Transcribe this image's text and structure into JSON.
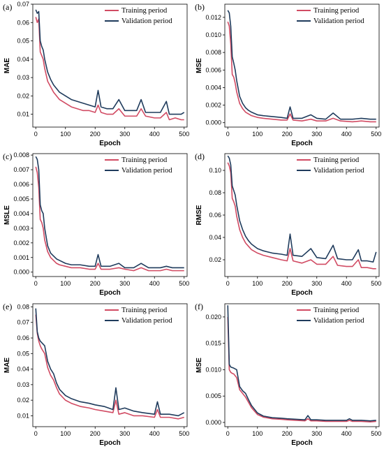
{
  "figure": {
    "series_colors": {
      "training": "#d14b63",
      "validation": "#1f3b5c"
    }
  },
  "chart_data": [
    {
      "type": "line",
      "panel_label": "(a)",
      "xlabel": "Epoch",
      "ylabel": "MAE",
      "xlim": [
        -10,
        510
      ],
      "ylim": [
        0.003,
        0.07
      ],
      "xticks": [
        0,
        100,
        200,
        300,
        400,
        500
      ],
      "yticks": [
        0.01,
        0.02,
        0.03,
        0.04,
        0.05,
        0.06,
        0.07
      ],
      "legend_position": "top-right",
      "grid": false,
      "series": [
        {
          "name": "Training period",
          "color": "#d14b63",
          "x": [
            0,
            5,
            10,
            15,
            20,
            25,
            30,
            40,
            50,
            60,
            70,
            80,
            90,
            100,
            120,
            140,
            160,
            180,
            200,
            210,
            220,
            240,
            260,
            280,
            300,
            320,
            340,
            355,
            370,
            400,
            420,
            440,
            450,
            470,
            490,
            500
          ],
          "y": [
            0.063,
            0.06,
            0.062,
            0.044,
            0.042,
            0.04,
            0.035,
            0.028,
            0.025,
            0.022,
            0.02,
            0.018,
            0.017,
            0.016,
            0.014,
            0.013,
            0.012,
            0.012,
            0.011,
            0.015,
            0.011,
            0.01,
            0.01,
            0.013,
            0.009,
            0.009,
            0.009,
            0.013,
            0.009,
            0.008,
            0.008,
            0.011,
            0.007,
            0.008,
            0.007,
            0.007
          ]
        },
        {
          "name": "Validation period",
          "color": "#1f3b5c",
          "x": [
            0,
            5,
            10,
            15,
            20,
            25,
            30,
            40,
            50,
            60,
            70,
            80,
            90,
            100,
            120,
            140,
            160,
            180,
            200,
            210,
            220,
            240,
            260,
            280,
            300,
            320,
            340,
            355,
            370,
            400,
            420,
            440,
            450,
            470,
            490,
            500
          ],
          "y": [
            0.067,
            0.065,
            0.066,
            0.05,
            0.047,
            0.045,
            0.04,
            0.033,
            0.029,
            0.026,
            0.024,
            0.022,
            0.021,
            0.02,
            0.018,
            0.017,
            0.016,
            0.015,
            0.014,
            0.023,
            0.014,
            0.013,
            0.013,
            0.018,
            0.012,
            0.012,
            0.012,
            0.018,
            0.011,
            0.011,
            0.011,
            0.017,
            0.01,
            0.01,
            0.01,
            0.011
          ]
        }
      ]
    },
    {
      "type": "line",
      "panel_label": "(b)",
      "xlabel": "Epoch",
      "ylabel": "MSE",
      "xlim": [
        -10,
        510
      ],
      "ylim": [
        -0.0005,
        0.0135
      ],
      "xticks": [
        0,
        100,
        200,
        300,
        400,
        500
      ],
      "yticks": [
        0.0,
        0.002,
        0.004,
        0.006,
        0.008,
        0.01,
        0.012
      ],
      "legend_position": "top-right",
      "grid": false,
      "series": [
        {
          "name": "Training period",
          "color": "#d14b63",
          "x": [
            0,
            5,
            10,
            15,
            20,
            25,
            30,
            40,
            50,
            60,
            70,
            80,
            100,
            120,
            150,
            180,
            200,
            210,
            220,
            250,
            280,
            300,
            330,
            355,
            380,
            420,
            450,
            480,
            500
          ],
          "y": [
            0.0115,
            0.011,
            0.009,
            0.0055,
            0.0052,
            0.0045,
            0.0035,
            0.0022,
            0.0016,
            0.0012,
            0.001,
            0.0008,
            0.0006,
            0.0005,
            0.0004,
            0.0003,
            0.0003,
            0.001,
            0.0003,
            0.0002,
            0.0004,
            0.0002,
            0.0002,
            0.0005,
            0.0002,
            0.0001,
            0.0002,
            0.0001,
            0.0001
          ]
        },
        {
          "name": "Validation period",
          "color": "#1f3b5c",
          "x": [
            0,
            5,
            10,
            15,
            20,
            25,
            30,
            40,
            50,
            60,
            70,
            80,
            100,
            120,
            150,
            180,
            200,
            210,
            220,
            250,
            280,
            300,
            330,
            355,
            380,
            420,
            450,
            480,
            500
          ],
          "y": [
            0.0128,
            0.0125,
            0.011,
            0.0075,
            0.0068,
            0.006,
            0.0048,
            0.003,
            0.0022,
            0.0017,
            0.0014,
            0.0012,
            0.0009,
            0.0008,
            0.0007,
            0.0006,
            0.0005,
            0.0018,
            0.0005,
            0.0005,
            0.0009,
            0.0005,
            0.0004,
            0.0011,
            0.0004,
            0.0004,
            0.0005,
            0.0004,
            0.0004
          ]
        }
      ]
    },
    {
      "type": "line",
      "panel_label": "(c)",
      "xlabel": "Epoch",
      "ylabel": "MSLE",
      "xlim": [
        -10,
        510
      ],
      "ylim": [
        -0.0003,
        0.0081
      ],
      "xticks": [
        0,
        100,
        200,
        300,
        400,
        500
      ],
      "yticks": [
        0.0,
        0.001,
        0.002,
        0.003,
        0.004,
        0.005,
        0.006,
        0.007,
        0.008
      ],
      "legend_position": "top-right",
      "grid": false,
      "series": [
        {
          "name": "Training period",
          "color": "#d14b63",
          "x": [
            0,
            5,
            10,
            15,
            20,
            25,
            30,
            40,
            50,
            60,
            70,
            80,
            100,
            120,
            150,
            180,
            200,
            210,
            220,
            250,
            280,
            300,
            330,
            355,
            380,
            420,
            440,
            460,
            500
          ],
          "y": [
            0.0072,
            0.0068,
            0.0058,
            0.0036,
            0.0034,
            0.003,
            0.0022,
            0.0014,
            0.001,
            0.0008,
            0.0006,
            0.0005,
            0.0004,
            0.0003,
            0.0003,
            0.0002,
            0.0002,
            0.0006,
            0.0002,
            0.0002,
            0.0003,
            0.0002,
            0.0001,
            0.0003,
            0.0001,
            0.0001,
            0.0002,
            0.0001,
            0.0001
          ]
        },
        {
          "name": "Validation period",
          "color": "#1f3b5c",
          "x": [
            0,
            5,
            10,
            15,
            20,
            25,
            30,
            40,
            50,
            60,
            70,
            80,
            100,
            120,
            150,
            180,
            200,
            210,
            220,
            250,
            280,
            300,
            330,
            355,
            380,
            420,
            440,
            460,
            500
          ],
          "y": [
            0.0079,
            0.0077,
            0.007,
            0.0046,
            0.0042,
            0.004,
            0.003,
            0.0018,
            0.0013,
            0.0011,
            0.0009,
            0.0008,
            0.0006,
            0.0005,
            0.0005,
            0.0004,
            0.0004,
            0.0012,
            0.0004,
            0.0004,
            0.0006,
            0.0003,
            0.0003,
            0.0006,
            0.0003,
            0.0003,
            0.0004,
            0.0003,
            0.0003
          ]
        }
      ]
    },
    {
      "type": "line",
      "panel_label": "(d)",
      "xlabel": "Epoch",
      "ylabel": "RMSE",
      "xlim": [
        -10,
        510
      ],
      "ylim": [
        0.005,
        0.115
      ],
      "xticks": [
        0,
        100,
        200,
        300,
        400,
        500
      ],
      "yticks": [
        0.02,
        0.04,
        0.06,
        0.08,
        0.1
      ],
      "legend_position": "top-right",
      "grid": false,
      "series": [
        {
          "name": "Training period",
          "color": "#d14b63",
          "x": [
            0,
            5,
            10,
            15,
            20,
            25,
            30,
            40,
            50,
            60,
            70,
            80,
            100,
            120,
            150,
            180,
            200,
            210,
            220,
            250,
            280,
            300,
            330,
            355,
            370,
            400,
            420,
            440,
            450,
            470,
            490,
            500
          ],
          "y": [
            0.107,
            0.104,
            0.098,
            0.075,
            0.072,
            0.068,
            0.059,
            0.047,
            0.04,
            0.035,
            0.032,
            0.029,
            0.026,
            0.024,
            0.022,
            0.02,
            0.019,
            0.03,
            0.019,
            0.017,
            0.02,
            0.016,
            0.016,
            0.023,
            0.015,
            0.014,
            0.014,
            0.02,
            0.013,
            0.013,
            0.012,
            0.012
          ]
        },
        {
          "name": "Validation period",
          "color": "#1f3b5c",
          "x": [
            0,
            5,
            10,
            15,
            20,
            25,
            30,
            40,
            50,
            60,
            70,
            80,
            100,
            120,
            150,
            180,
            200,
            210,
            220,
            250,
            280,
            300,
            330,
            355,
            370,
            400,
            420,
            440,
            450,
            470,
            490,
            500
          ],
          "y": [
            0.113,
            0.111,
            0.105,
            0.086,
            0.082,
            0.078,
            0.069,
            0.055,
            0.047,
            0.041,
            0.037,
            0.034,
            0.03,
            0.028,
            0.026,
            0.025,
            0.024,
            0.043,
            0.024,
            0.023,
            0.03,
            0.022,
            0.021,
            0.033,
            0.021,
            0.02,
            0.02,
            0.029,
            0.019,
            0.019,
            0.018,
            0.027
          ]
        }
      ]
    },
    {
      "type": "line",
      "panel_label": "(e)",
      "xlabel": "Epoch",
      "ylabel": "MAE",
      "xlim": [
        -10,
        510
      ],
      "ylim": [
        0.003,
        0.082
      ],
      "xticks": [
        0,
        100,
        200,
        300,
        400,
        500
      ],
      "yticks": [
        0.01,
        0.02,
        0.03,
        0.04,
        0.05,
        0.06,
        0.07,
        0.08
      ],
      "legend_position": "top-right",
      "grid": false,
      "series": [
        {
          "name": "Training period",
          "color": "#d14b63",
          "x": [
            0,
            5,
            10,
            15,
            20,
            30,
            40,
            50,
            60,
            70,
            80,
            100,
            120,
            150,
            180,
            200,
            230,
            260,
            270,
            280,
            300,
            330,
            360,
            400,
            410,
            420,
            450,
            480,
            500
          ],
          "y": [
            0.075,
            0.063,
            0.058,
            0.055,
            0.053,
            0.05,
            0.041,
            0.036,
            0.033,
            0.028,
            0.024,
            0.02,
            0.018,
            0.016,
            0.015,
            0.014,
            0.013,
            0.012,
            0.02,
            0.011,
            0.012,
            0.01,
            0.01,
            0.009,
            0.014,
            0.009,
            0.009,
            0.008,
            0.009
          ]
        },
        {
          "name": "Validation period",
          "color": "#1f3b5c",
          "x": [
            0,
            5,
            10,
            15,
            20,
            30,
            40,
            50,
            60,
            70,
            80,
            100,
            120,
            150,
            180,
            200,
            230,
            260,
            270,
            280,
            300,
            330,
            360,
            400,
            410,
            420,
            450,
            480,
            500
          ],
          "y": [
            0.079,
            0.064,
            0.06,
            0.058,
            0.057,
            0.055,
            0.045,
            0.04,
            0.037,
            0.031,
            0.027,
            0.023,
            0.021,
            0.019,
            0.018,
            0.017,
            0.016,
            0.014,
            0.028,
            0.014,
            0.015,
            0.013,
            0.012,
            0.011,
            0.019,
            0.011,
            0.011,
            0.01,
            0.012
          ]
        }
      ]
    },
    {
      "type": "line",
      "panel_label": "(f)",
      "xlabel": "Epoch",
      "ylabel": "MSE",
      "xlim": [
        -10,
        510
      ],
      "ylim": [
        -0.0008,
        0.0225
      ],
      "xticks": [
        0,
        100,
        200,
        300,
        400,
        500
      ],
      "yticks": [
        0.0,
        0.005,
        0.01,
        0.015,
        0.02
      ],
      "legend_position": "top-right",
      "grid": false,
      "series": [
        {
          "name": "Training period",
          "color": "#d14b63",
          "x": [
            0,
            5,
            10,
            15,
            20,
            30,
            40,
            50,
            60,
            70,
            80,
            100,
            120,
            150,
            180,
            200,
            230,
            260,
            270,
            280,
            300,
            330,
            360,
            400,
            410,
            420,
            450,
            480,
            500
          ],
          "y": [
            0.02,
            0.01,
            0.0095,
            0.0093,
            0.0092,
            0.0085,
            0.0062,
            0.0055,
            0.0048,
            0.0038,
            0.0028,
            0.0015,
            0.001,
            0.0007,
            0.0006,
            0.0005,
            0.0004,
            0.0003,
            0.0007,
            0.0003,
            0.0003,
            0.0002,
            0.0002,
            0.0002,
            0.0004,
            0.0002,
            0.0002,
            0.0001,
            0.0002
          ]
        },
        {
          "name": "Validation period",
          "color": "#1f3b5c",
          "x": [
            0,
            5,
            10,
            15,
            20,
            30,
            40,
            50,
            60,
            70,
            80,
            100,
            120,
            150,
            180,
            200,
            230,
            260,
            270,
            280,
            300,
            330,
            360,
            400,
            410,
            420,
            450,
            480,
            500
          ],
          "y": [
            0.0222,
            0.011,
            0.0105,
            0.0104,
            0.0103,
            0.01,
            0.0068,
            0.006,
            0.0055,
            0.0043,
            0.0032,
            0.0018,
            0.0012,
            0.0009,
            0.0008,
            0.0007,
            0.0006,
            0.0005,
            0.0013,
            0.0005,
            0.0005,
            0.0004,
            0.0004,
            0.0004,
            0.0007,
            0.0004,
            0.0004,
            0.0003,
            0.0004
          ]
        }
      ]
    }
  ]
}
